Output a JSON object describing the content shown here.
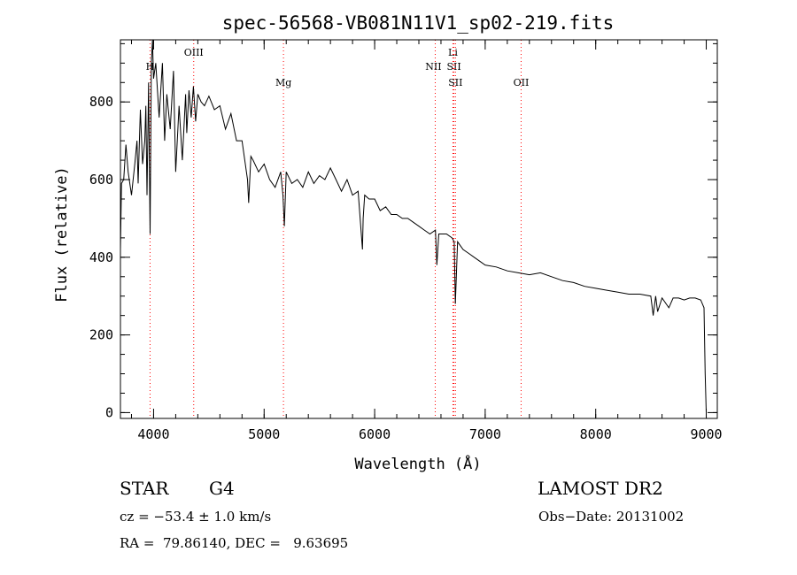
{
  "chart_data": {
    "type": "line",
    "title": "spec-56568-VB081N11V1_sp02-219.fits",
    "xlabel": "Wavelength (Å)",
    "ylabel": "Flux (relative)",
    "xlim": [
      3700,
      9100
    ],
    "ylim": [
      -15,
      960
    ],
    "x_ticks": [
      4000,
      5000,
      6000,
      7000,
      8000,
      9000
    ],
    "y_ticks": [
      0,
      200,
      400,
      600,
      800
    ],
    "x_tick_labels": [
      "4000",
      "5000",
      "6000",
      "7000",
      "8000",
      "9000"
    ],
    "y_tick_labels": [
      "0",
      "200",
      "400",
      "600",
      "800"
    ],
    "x_minor_step": 200,
    "y_minor_step": 50,
    "grid": false,
    "series": [
      {
        "x": [
          3700,
          3710,
          3730,
          3750,
          3770,
          3800,
          3830,
          3850,
          3860,
          3880,
          3900,
          3920,
          3930,
          3940,
          3955,
          3968,
          3980,
          3990,
          4000,
          4020,
          4050,
          4080,
          4100,
          4120,
          4150,
          4180,
          4200,
          4230,
          4260,
          4290,
          4300,
          4320,
          4340,
          4360,
          4380,
          4400,
          4430,
          4460,
          4500,
          4550,
          4600,
          4650,
          4700,
          4750,
          4800,
          4850,
          4860,
          4880,
          4900,
          4950,
          5000,
          5050,
          5100,
          5150,
          5170,
          5183,
          5200,
          5250,
          5300,
          5350,
          5400,
          5450,
          5500,
          5550,
          5600,
          5650,
          5700,
          5750,
          5800,
          5850,
          5890,
          5896,
          5910,
          5950,
          6000,
          6050,
          6100,
          6150,
          6200,
          6250,
          6300,
          6350,
          6400,
          6450,
          6500,
          6550,
          6563,
          6580,
          6600,
          6650,
          6700,
          6720,
          6730,
          6750,
          6800,
          6850,
          6900,
          6950,
          7000,
          7100,
          7200,
          7300,
          7400,
          7500,
          7600,
          7700,
          7800,
          7900,
          8000,
          8100,
          8200,
          8300,
          8400,
          8498,
          8520,
          8542,
          8560,
          8600,
          8662,
          8700,
          8750,
          8800,
          8850,
          8900,
          8950,
          8980,
          8990,
          9000
        ],
        "y": [
          420,
          590,
          600,
          690,
          620,
          560,
          640,
          700,
          590,
          780,
          640,
          700,
          790,
          560,
          850,
          460,
          900,
          960,
          860,
          900,
          760,
          900,
          700,
          820,
          730,
          880,
          620,
          790,
          650,
          820,
          720,
          830,
          760,
          840,
          750,
          820,
          800,
          790,
          815,
          780,
          790,
          730,
          770,
          700,
          700,
          600,
          540,
          660,
          650,
          620,
          640,
          600,
          580,
          620,
          560,
          480,
          620,
          590,
          600,
          580,
          620,
          590,
          610,
          600,
          630,
          600,
          570,
          600,
          560,
          570,
          420,
          500,
          560,
          550,
          550,
          520,
          530,
          510,
          510,
          500,
          500,
          490,
          480,
          470,
          460,
          470,
          380,
          460,
          460,
          460,
          450,
          440,
          280,
          440,
          420,
          410,
          400,
          390,
          380,
          375,
          365,
          360,
          355,
          360,
          350,
          340,
          335,
          325,
          320,
          315,
          310,
          305,
          305,
          300,
          250,
          300,
          260,
          295,
          270,
          295,
          295,
          290,
          295,
          295,
          290,
          270,
          100,
          0
        ]
      }
    ],
    "lines": [
      {
        "name": "H",
        "x": 3968
      },
      {
        "name": "OIII",
        "x": 4363
      },
      {
        "name": "Mg",
        "x": 5175
      },
      {
        "name": "NII",
        "x": 6548
      },
      {
        "name": "Li",
        "x": 6708
      },
      {
        "name": "SII",
        "x": 6717
      },
      {
        "name": "SII",
        "x": 6731
      },
      {
        "name": "OII",
        "x": 7325
      }
    ],
    "line_color": "#ff0000",
    "series_color": "#000000"
  },
  "info": {
    "class_label": "STAR",
    "subclass": "G4",
    "survey": "LAMOST DR2",
    "cz": "cz = −53.4 ± 1.0 km/s",
    "obs_date": "Obs−Date: 20131002",
    "coords": "RA =  79.86140, DEC =   9.63695"
  }
}
